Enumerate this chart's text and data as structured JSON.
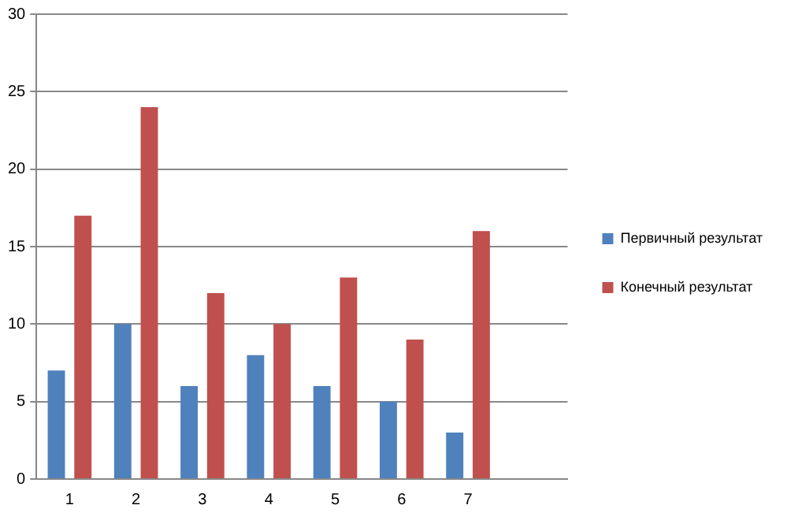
{
  "chart_data": {
    "type": "bar",
    "categories": [
      "1",
      "2",
      "3",
      "4",
      "5",
      "6",
      "7",
      null
    ],
    "series": [
      {
        "name": "Первичный результат",
        "color": "#4f81bd",
        "values": [
          7,
          10,
          6,
          8,
          6,
          5,
          3,
          null
        ]
      },
      {
        "name": "Конечный результат",
        "color": "#c0504d",
        "values": [
          17,
          24,
          12,
          10,
          13,
          9,
          16,
          null
        ]
      }
    ],
    "ylim": [
      0,
      30
    ],
    "yticks": [
      0,
      5,
      10,
      15,
      20,
      25,
      30
    ],
    "grid": "y",
    "legend": "right"
  }
}
